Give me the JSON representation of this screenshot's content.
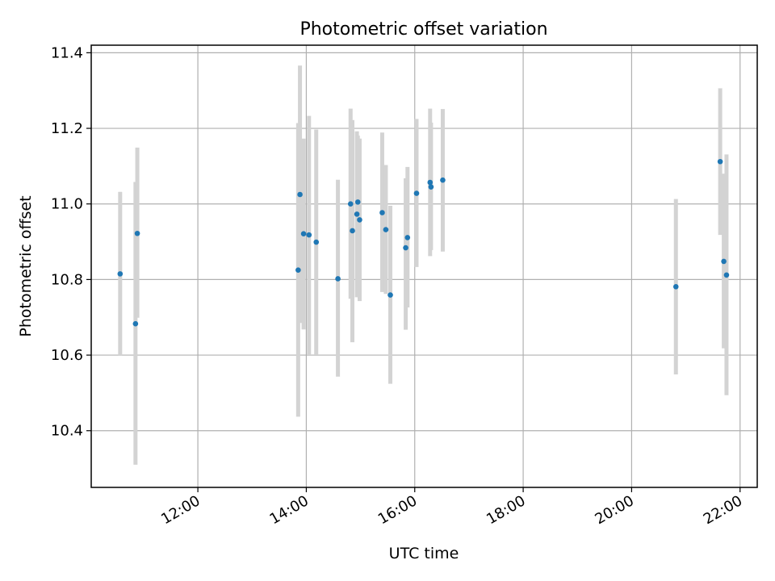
{
  "chart_data": {
    "type": "scatter",
    "title": "Photometric offset variation",
    "xlabel": "UTC time",
    "ylabel": "Photometric offset",
    "grid": true,
    "xlim": [
      "10:02",
      "22:19"
    ],
    "ylim": [
      10.25,
      11.42
    ],
    "x_ticks": [
      "12:00",
      "14:00",
      "16:00",
      "18:00",
      "20:00",
      "22:00"
    ],
    "y_ticks": [
      10.4,
      10.6,
      10.8,
      11.0,
      11.2,
      11.4
    ],
    "y_tick_labels": [
      "10.4",
      "10.6",
      "10.8",
      "11.0",
      "11.2",
      "11.4"
    ],
    "colors": {
      "point": "#1f77b4",
      "error_bar": "#d3d3d3"
    },
    "series": [
      {
        "points": [
          {
            "x": "10:34",
            "y": 10.815,
            "ylow": 10.598,
            "yhigh": 11.032
          },
          {
            "x": "10:51",
            "y": 10.683,
            "ylow": 10.31,
            "yhigh": 11.058
          },
          {
            "x": "10:53",
            "y": 10.922,
            "ylow": 10.699,
            "yhigh": 11.149
          },
          {
            "x": "13:51",
            "y": 10.825,
            "ylow": 10.437,
            "yhigh": 11.214
          },
          {
            "x": "13:53",
            "y": 11.025,
            "ylow": 10.685,
            "yhigh": 11.366
          },
          {
            "x": "13:57",
            "y": 10.921,
            "ylow": 10.668,
            "yhigh": 11.173
          },
          {
            "x": "14:03",
            "y": 10.918,
            "ylow": 10.602,
            "yhigh": 11.233
          },
          {
            "x": "14:11",
            "y": 10.899,
            "ylow": 10.602,
            "yhigh": 11.197
          },
          {
            "x": "14:35",
            "y": 10.802,
            "ylow": 10.543,
            "yhigh": 11.064
          },
          {
            "x": "14:49",
            "y": 11.0,
            "ylow": 10.749,
            "yhigh": 11.252
          },
          {
            "x": "14:51",
            "y": 10.929,
            "ylow": 10.634,
            "yhigh": 11.222
          },
          {
            "x": "14:56",
            "y": 10.973,
            "ylow": 10.753,
            "yhigh": 11.192
          },
          {
            "x": "14:57",
            "y": 11.005,
            "ylow": 10.829,
            "yhigh": 11.181
          },
          {
            "x": "14:59",
            "y": 10.958,
            "ylow": 10.743,
            "yhigh": 11.173
          },
          {
            "x": "15:24",
            "y": 10.977,
            "ylow": 10.767,
            "yhigh": 11.189
          },
          {
            "x": "15:28",
            "y": 10.932,
            "ylow": 10.762,
            "yhigh": 11.103
          },
          {
            "x": "15:33",
            "y": 10.759,
            "ylow": 10.524,
            "yhigh": 10.995
          },
          {
            "x": "15:50",
            "y": 10.884,
            "ylow": 10.667,
            "yhigh": 11.068
          },
          {
            "x": "15:52",
            "y": 10.911,
            "ylow": 10.726,
            "yhigh": 11.098
          },
          {
            "x": "16:02",
            "y": 11.028,
            "ylow": 10.833,
            "yhigh": 11.225
          },
          {
            "x": "16:17",
            "y": 11.057,
            "ylow": 10.862,
            "yhigh": 11.252
          },
          {
            "x": "16:18",
            "y": 11.045,
            "ylow": 10.878,
            "yhigh": 11.215
          },
          {
            "x": "16:31",
            "y": 11.063,
            "ylow": 10.874,
            "yhigh": 11.251
          },
          {
            "x": "20:49",
            "y": 10.781,
            "ylow": 10.549,
            "yhigh": 11.013
          },
          {
            "x": "21:38",
            "y": 11.112,
            "ylow": 10.918,
            "yhigh": 11.306
          },
          {
            "x": "21:42",
            "y": 10.848,
            "ylow": 10.618,
            "yhigh": 11.08
          },
          {
            "x": "21:45",
            "y": 10.812,
            "ylow": 10.494,
            "yhigh": 11.131
          }
        ]
      }
    ]
  }
}
